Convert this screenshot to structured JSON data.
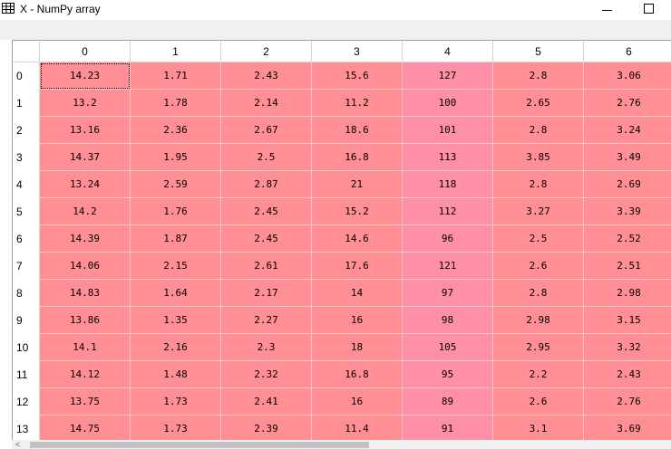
{
  "window": {
    "title": "X - NumPy array",
    "minimize_label": "",
    "maximize_label": ""
  },
  "colors": {
    "cell_default": "#ff8f94",
    "cell_col4": "#ff8fa6",
    "header_bg": "#ffffff",
    "grid_line": "#f4c8c8"
  },
  "table": {
    "columns": [
      "0",
      "1",
      "2",
      "3",
      "4",
      "5",
      "6"
    ],
    "rows": [
      {
        "index": "0",
        "values": [
          "14.23",
          "1.71",
          "2.43",
          "15.6",
          "127",
          "2.8",
          "3.06"
        ]
      },
      {
        "index": "1",
        "values": [
          "13.2",
          "1.78",
          "2.14",
          "11.2",
          "100",
          "2.65",
          "2.76"
        ]
      },
      {
        "index": "2",
        "values": [
          "13.16",
          "2.36",
          "2.67",
          "18.6",
          "101",
          "2.8",
          "3.24"
        ]
      },
      {
        "index": "3",
        "values": [
          "14.37",
          "1.95",
          "2.5",
          "16.8",
          "113",
          "3.85",
          "3.49"
        ]
      },
      {
        "index": "4",
        "values": [
          "13.24",
          "2.59",
          "2.87",
          "21",
          "118",
          "2.8",
          "2.69"
        ]
      },
      {
        "index": "5",
        "values": [
          "14.2",
          "1.76",
          "2.45",
          "15.2",
          "112",
          "3.27",
          "3.39"
        ]
      },
      {
        "index": "6",
        "values": [
          "14.39",
          "1.87",
          "2.45",
          "14.6",
          "96",
          "2.5",
          "2.52"
        ]
      },
      {
        "index": "7",
        "values": [
          "14.06",
          "2.15",
          "2.61",
          "17.6",
          "121",
          "2.6",
          "2.51"
        ]
      },
      {
        "index": "8",
        "values": [
          "14.83",
          "1.64",
          "2.17",
          "14",
          "97",
          "2.8",
          "2.98"
        ]
      },
      {
        "index": "9",
        "values": [
          "13.86",
          "1.35",
          "2.27",
          "16",
          "98",
          "2.98",
          "3.15"
        ]
      },
      {
        "index": "10",
        "values": [
          "14.1",
          "2.16",
          "2.3",
          "18",
          "105",
          "2.95",
          "3.32"
        ]
      },
      {
        "index": "11",
        "values": [
          "14.12",
          "1.48",
          "2.32",
          "16.8",
          "95",
          "2.2",
          "2.43"
        ]
      },
      {
        "index": "12",
        "values": [
          "13.75",
          "1.73",
          "2.41",
          "16",
          "89",
          "2.6",
          "2.76"
        ]
      },
      {
        "index": "13",
        "values": [
          "14.75",
          "1.73",
          "2.39",
          "11.4",
          "91",
          "3.1",
          "3.69"
        ]
      }
    ],
    "selected_cell": {
      "row": 0,
      "col": 0
    }
  },
  "icons": {
    "window_icon": "table-grid-icon",
    "scroll_left": "chevron-left-icon"
  },
  "scrollbar": {
    "left_arrow": "<"
  }
}
